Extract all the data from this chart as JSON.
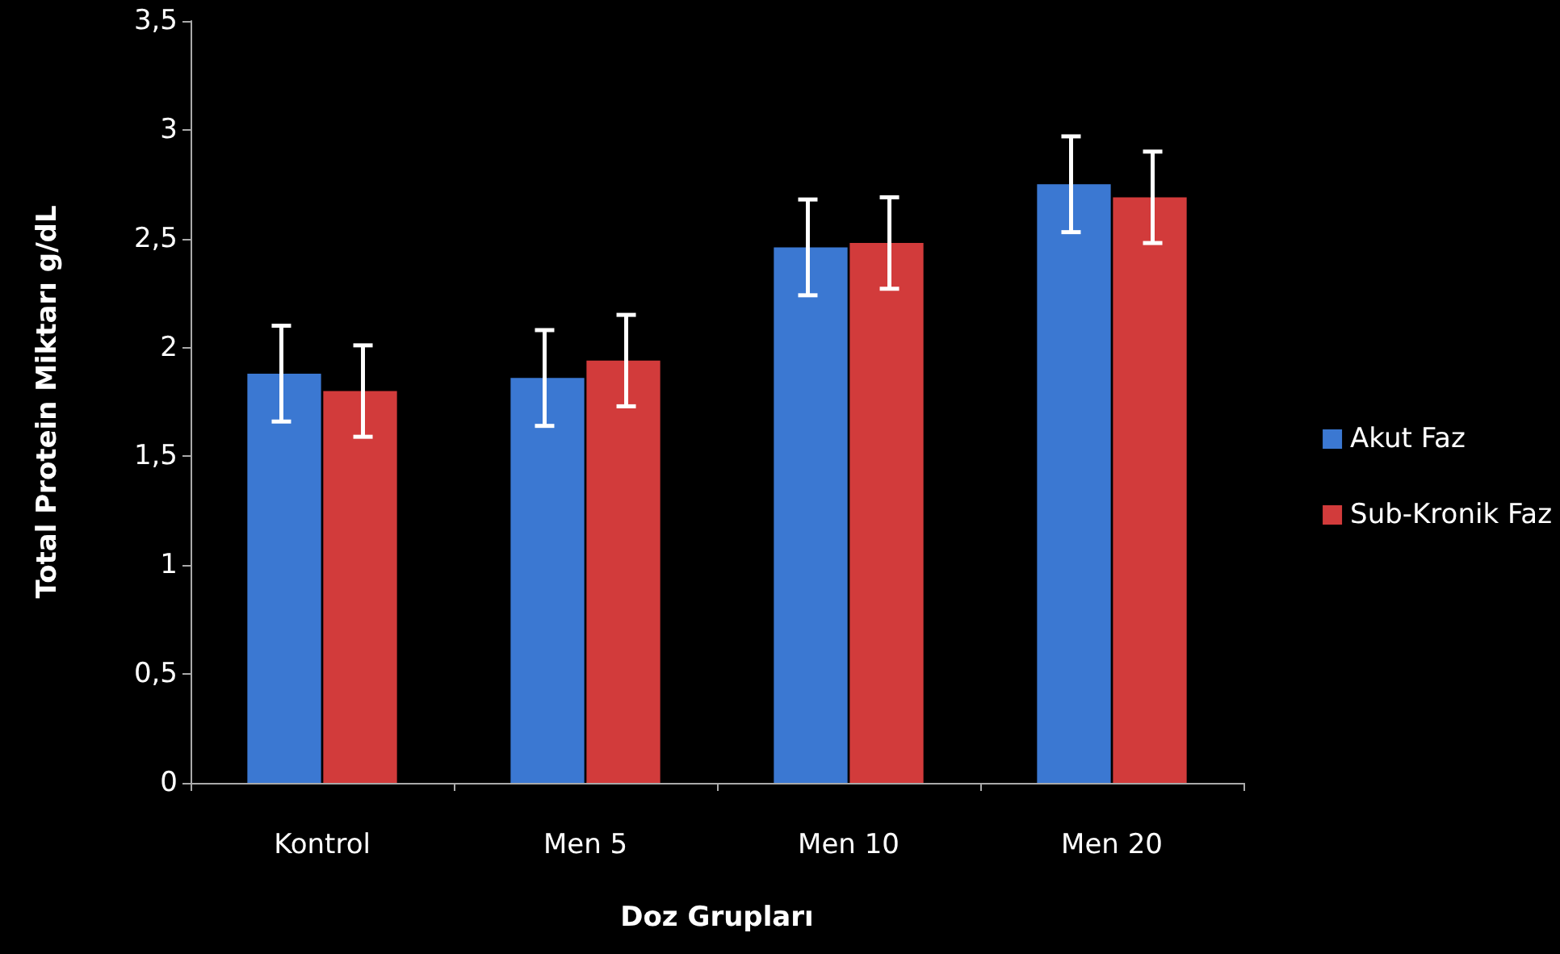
{
  "chart_data": {
    "type": "bar",
    "xlabel": "Doz Grupları",
    "ylabel": "Total Protein Miktarı g/dL",
    "categories": [
      "Kontrol",
      "Men 5",
      "Men 10",
      "Men 20"
    ],
    "series": [
      {
        "name": "Akut Faz",
        "color": "#3b78d2",
        "values": [
          1.88,
          1.86,
          2.46,
          2.75
        ],
        "errors": [
          0.22,
          0.22,
          0.22,
          0.22
        ]
      },
      {
        "name": "Sub-Kronik Faz",
        "color": "#d23b3b",
        "values": [
          1.8,
          1.94,
          2.48,
          2.69
        ],
        "errors": [
          0.21,
          0.21,
          0.21,
          0.21
        ]
      }
    ],
    "ylim": [
      0,
      3.5
    ],
    "yticks": [
      {
        "value": 0,
        "label": "0"
      },
      {
        "value": 0.5,
        "label": "0,5"
      },
      {
        "value": 1,
        "label": "1"
      },
      {
        "value": 1.5,
        "label": "1,5"
      },
      {
        "value": 2,
        "label": "2"
      },
      {
        "value": 2.5,
        "label": "2,5"
      },
      {
        "value": 3,
        "label": "3"
      },
      {
        "value": 3.5,
        "label": "3,5"
      }
    ],
    "grid": false,
    "legend": "right"
  }
}
